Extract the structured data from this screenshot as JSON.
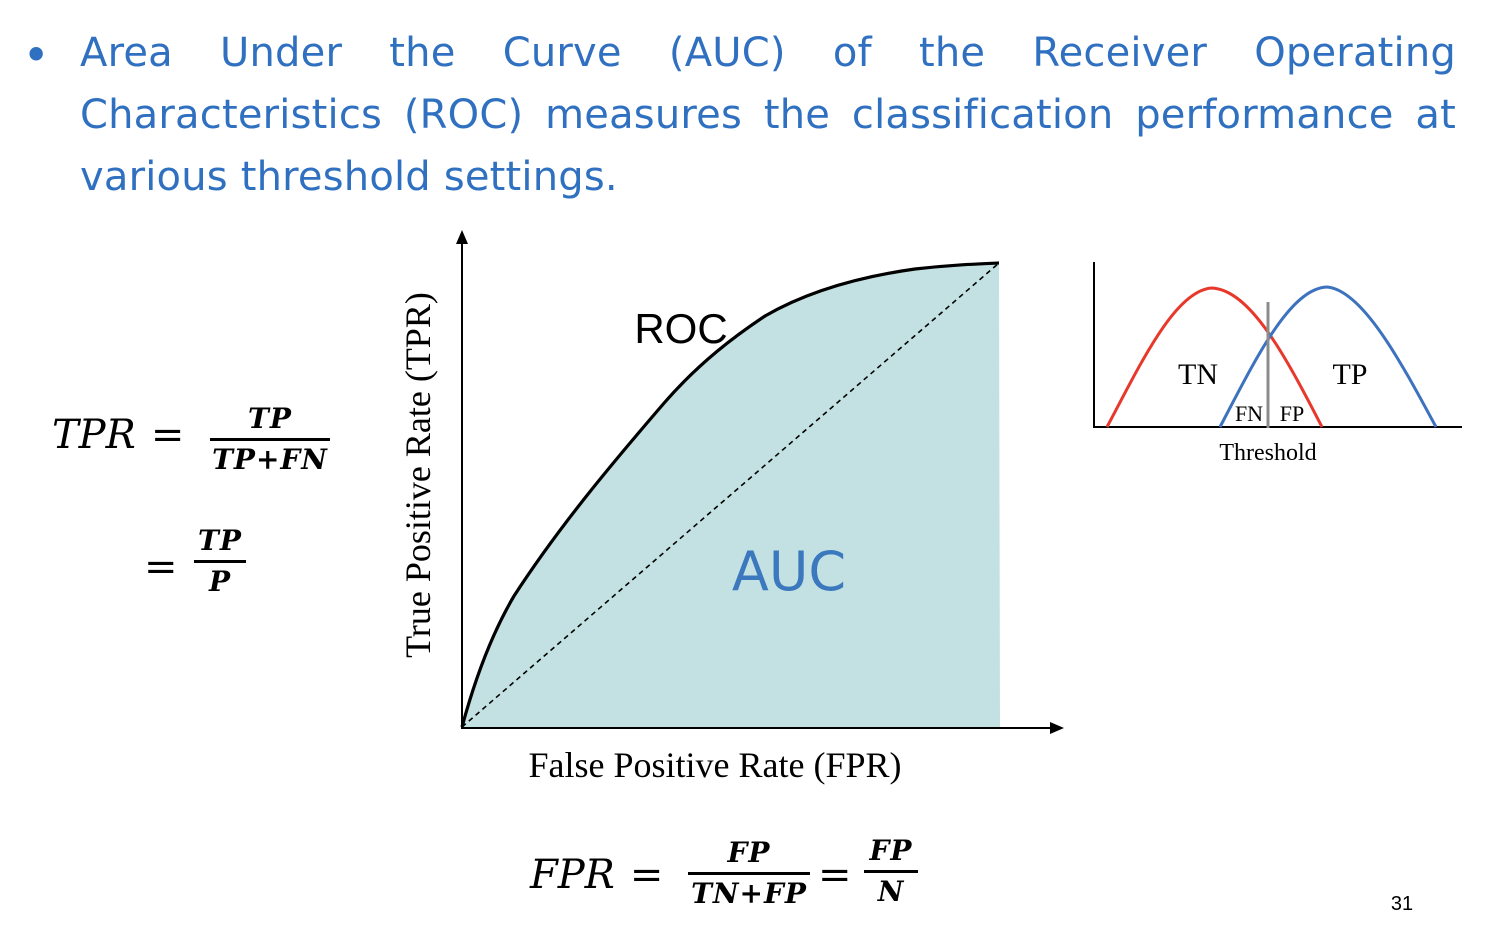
{
  "slide": {
    "bullet_text": "Area Under the Curve (AUC) of the Receiver Operating Characteristics (ROC) measures the classification performance at various threshold settings.",
    "page_number": "31",
    "text_color": "#3070C0"
  },
  "tpr_formula": {
    "lhs": "TPR",
    "eq": "=",
    "num": "TP",
    "den": "TP+FN",
    "eq2": "=",
    "num2": "TP",
    "den2": "P"
  },
  "fpr_formula": {
    "lhs": "FPR",
    "eq": "=",
    "num": "FP",
    "den": "TN+FP",
    "eq2": "=",
    "num2": "FP",
    "den2": "N"
  },
  "roc_chart": {
    "curve_label": "ROC",
    "area_label": "AUC",
    "xlabel": "False Positive Rate (FPR)",
    "ylabel": "True Positive Rate (TPR)",
    "fill_color": "#C3E1E2",
    "area_label_color": "#3B78BE"
  },
  "threshold_chart": {
    "tn_label": "TN",
    "tp_label": "TP",
    "fn_label": "FN",
    "fp_label": "FP",
    "threshold_label": "Threshold",
    "negative_color": "#E8382B",
    "positive_color": "#3C72BE",
    "threshold_color": "#8C8C8C"
  }
}
